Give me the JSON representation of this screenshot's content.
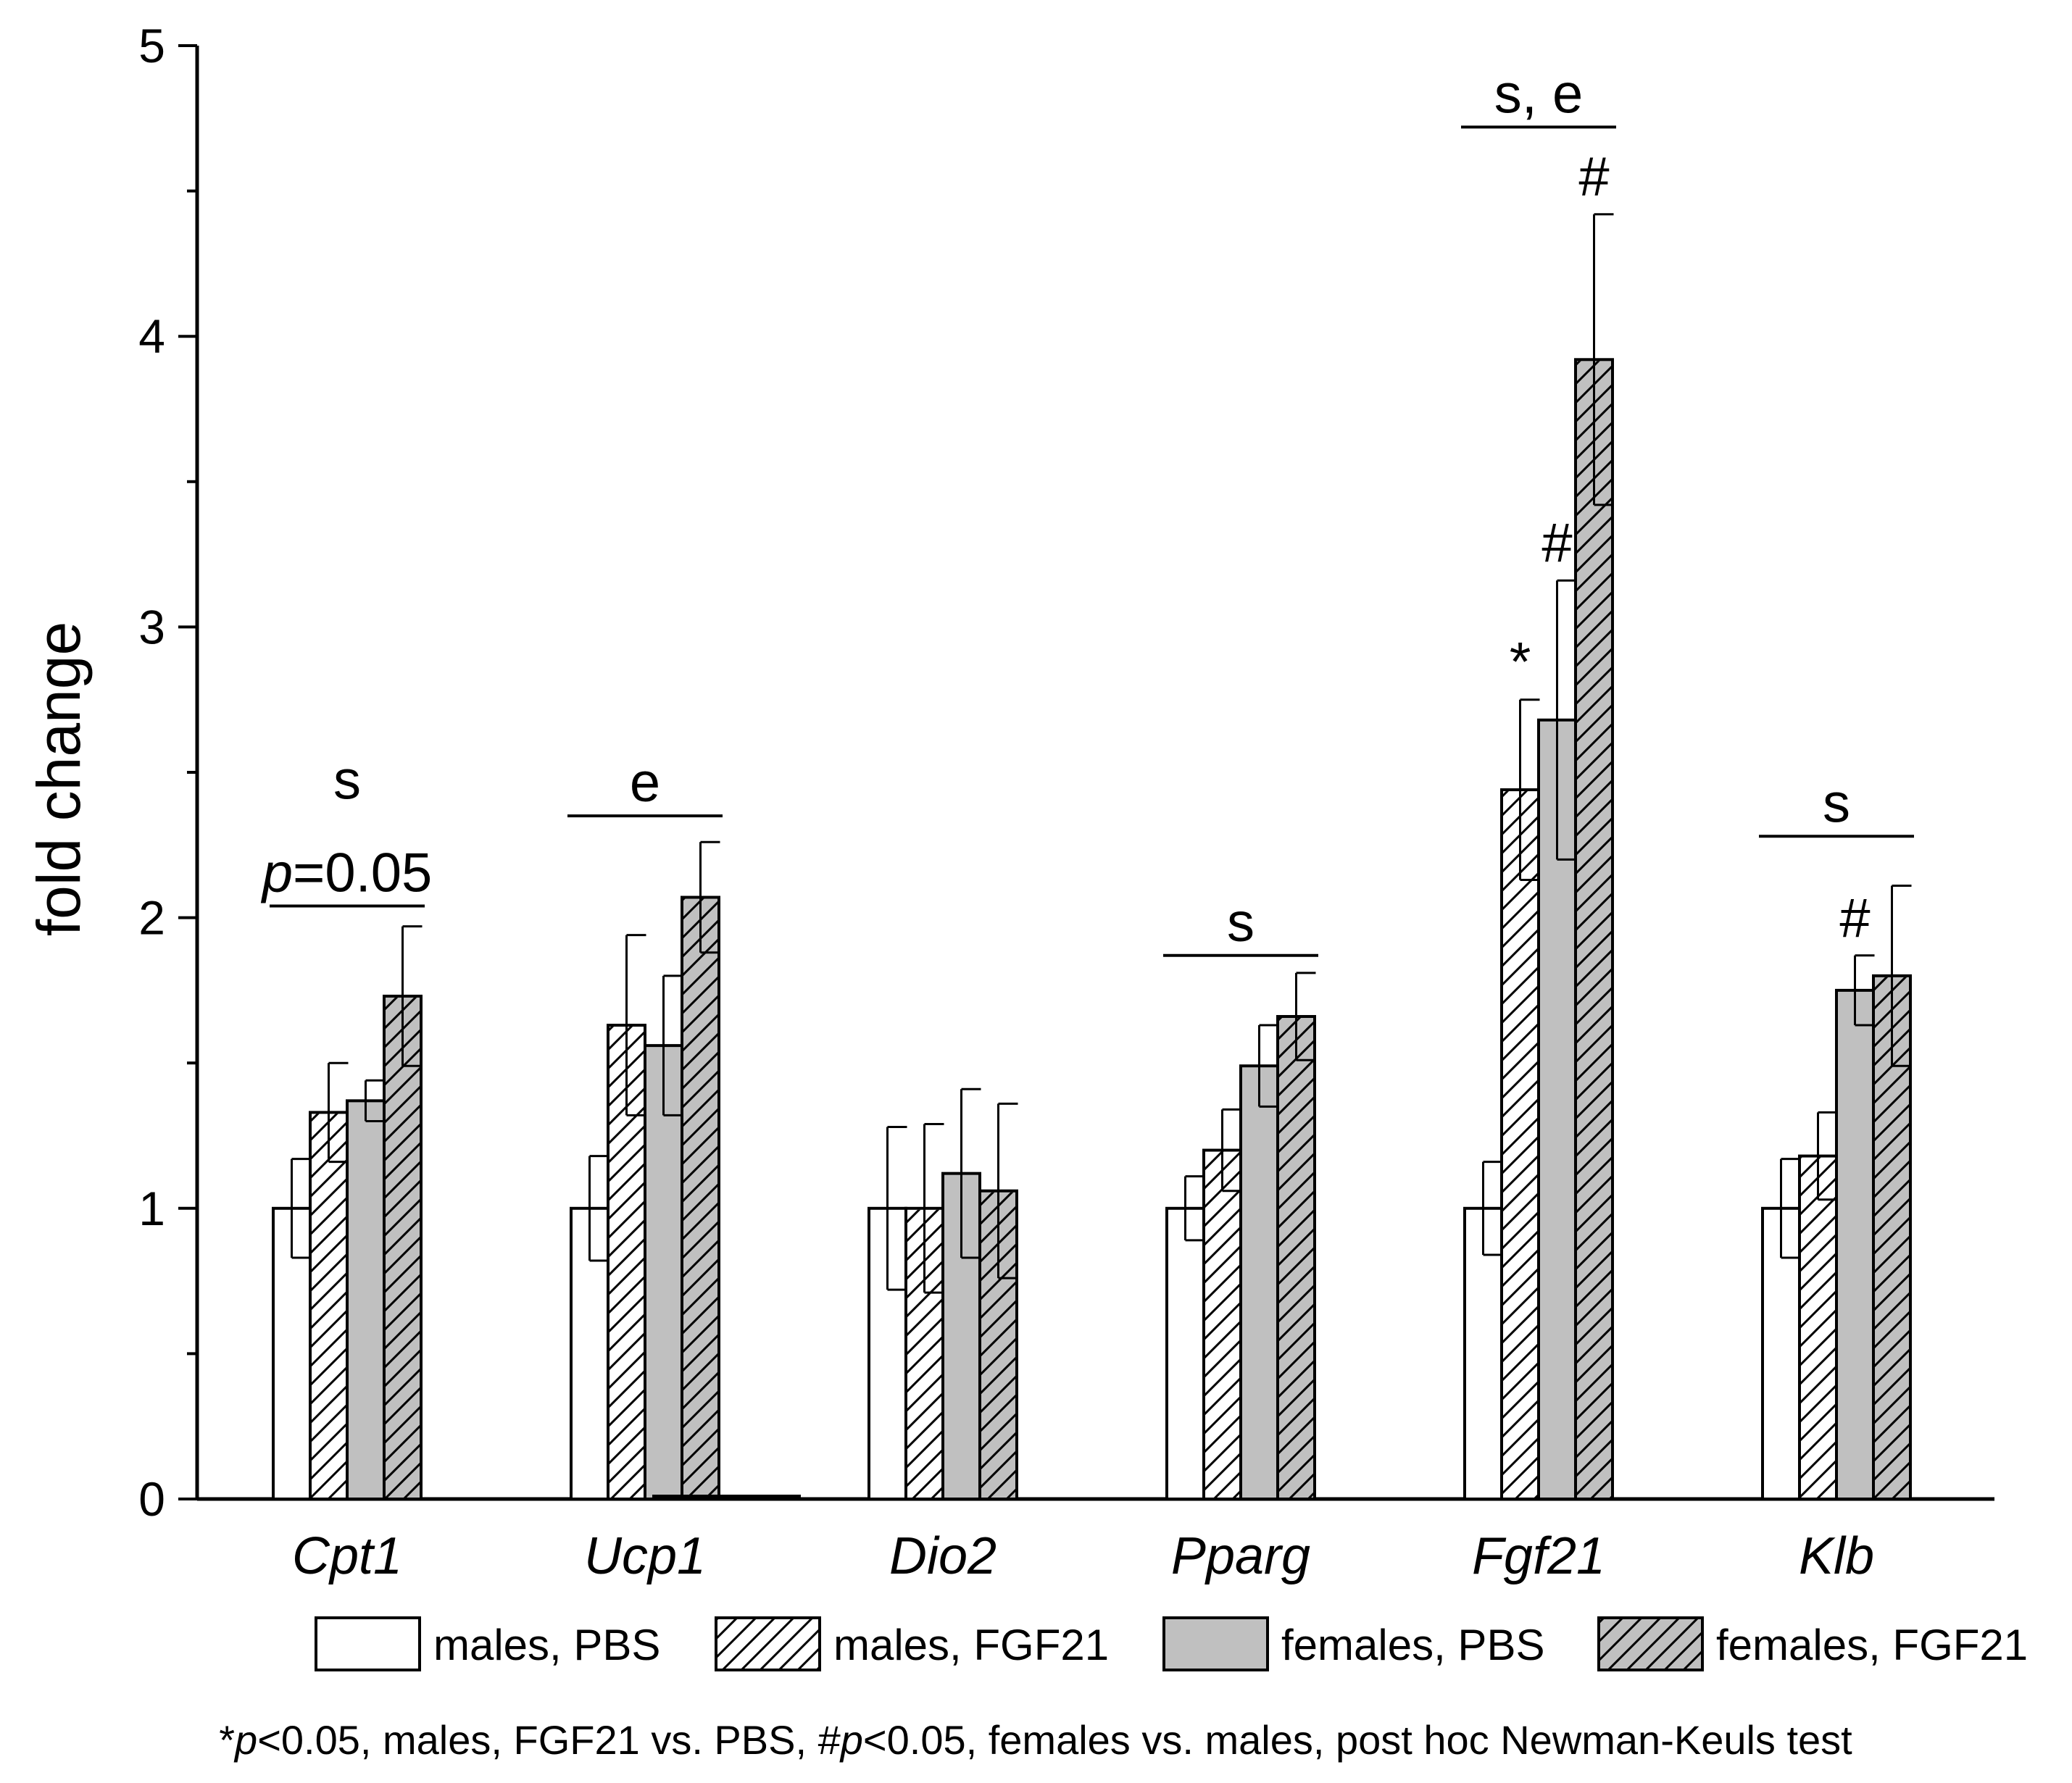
{
  "chart_data": {
    "type": "bar",
    "title": "",
    "xlabel": "",
    "ylabel": "fold change",
    "ylim": [
      0,
      5
    ],
    "yticks": [
      "0",
      "1",
      "2",
      "3",
      "4",
      "5"
    ],
    "categories": [
      "Cpt1",
      "Ucp1",
      "Dio2",
      "Pparg",
      "Fgf21",
      "Klb"
    ],
    "series": [
      {
        "name": "males, PBS",
        "fill": "#ffffff",
        "hatch": false,
        "values": [
          1.0,
          1.0,
          1.0,
          1.0,
          1.0,
          1.0
        ],
        "errors": [
          0.17,
          0.18,
          0.28,
          0.11,
          0.16,
          0.17
        ]
      },
      {
        "name": "males, FGF21",
        "fill": "#ffffff",
        "hatch": true,
        "values": [
          1.33,
          1.63,
          1.0,
          1.2,
          2.44,
          1.18
        ],
        "errors": [
          0.17,
          0.31,
          0.29,
          0.14,
          0.31,
          0.15
        ]
      },
      {
        "name": "females, PBS",
        "fill": "#c0c0c0",
        "hatch": false,
        "values": [
          1.37,
          1.56,
          1.12,
          1.49,
          2.68,
          1.75
        ],
        "errors": [
          0.07,
          0.24,
          0.29,
          0.14,
          0.48,
          0.12
        ]
      },
      {
        "name": "females, FGF21",
        "fill": "#c0c0c0",
        "hatch": true,
        "values": [
          1.73,
          2.07,
          1.06,
          1.66,
          3.92,
          1.8
        ],
        "errors": [
          0.24,
          0.19,
          0.3,
          0.15,
          0.5,
          0.31
        ]
      }
    ],
    "annotations": [
      {
        "category": "Cpt1",
        "lines": [
          "s",
          "p=0.05"
        ],
        "bracket_y": 2.04
      },
      {
        "category": "Ucp1",
        "lines": [
          "e"
        ],
        "bracket_y": 2.35
      },
      {
        "category": "Pparg",
        "lines": [
          "s"
        ],
        "bracket_y": 1.87
      },
      {
        "category": "Fgf21",
        "lines": [
          "s, e"
        ],
        "bracket_y": 4.72
      },
      {
        "category": "Klb",
        "lines": [
          "s"
        ],
        "bracket_y": 2.28
      }
    ],
    "markers": [
      {
        "category": "Fgf21",
        "series": 1,
        "symbol": "*"
      },
      {
        "category": "Fgf21",
        "series": 2,
        "symbol": "#"
      },
      {
        "category": "Fgf21",
        "series": 3,
        "symbol": "#"
      },
      {
        "category": "Klb",
        "series": 2,
        "symbol": "#"
      }
    ],
    "legend": "bottom",
    "footnote": "*p<0.05, males, FGF21 vs. PBS, #p<0.05, females vs. males, post hoc Newman-Keuls test"
  }
}
